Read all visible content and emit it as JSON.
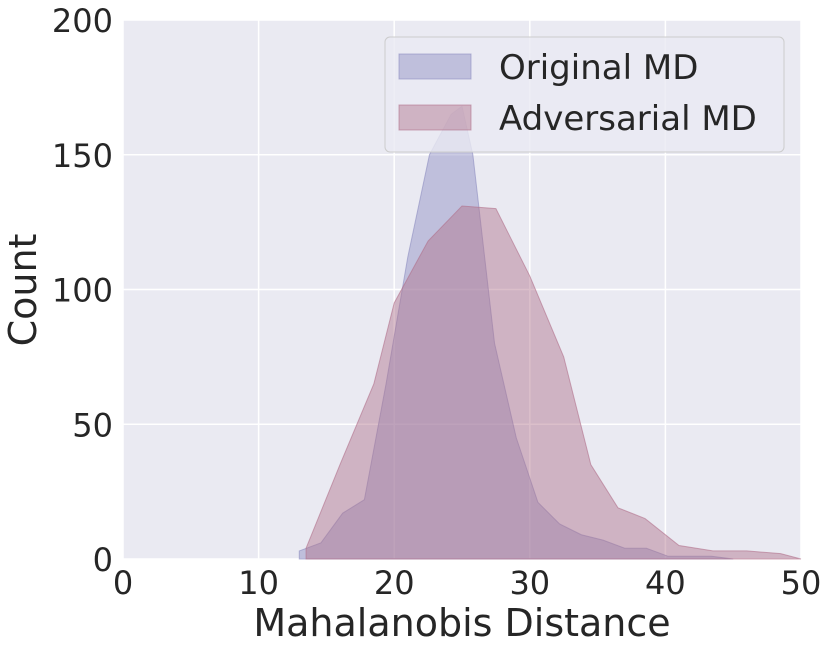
{
  "chart_data": {
    "type": "area",
    "title": "",
    "xlabel": "Mahalanobis Distance",
    "ylabel": "Count",
    "xlim": [
      0,
      50
    ],
    "ylim": [
      0,
      200
    ],
    "xticks": [
      "0",
      "10",
      "20",
      "30",
      "40",
      "50"
    ],
    "yticks": [
      "0",
      "50",
      "100",
      "150",
      "200"
    ],
    "grid": true,
    "legend_position": "top-right",
    "series": [
      {
        "name": "Original MD",
        "color": "#8c8cc0",
        "x": [
          13.0,
          14.6,
          16.2,
          17.8,
          19.4,
          21.0,
          22.6,
          24.2,
          25.0,
          25.8,
          27.4,
          29.0,
          30.6,
          32.2,
          33.8,
          35.4,
          37.0,
          38.6,
          40.2,
          41.8,
          43.4,
          45.0
        ],
        "y": [
          3,
          6,
          17,
          22,
          65,
          112,
          150,
          165,
          168,
          150,
          80,
          45,
          21,
          13,
          9,
          7,
          4,
          4,
          1,
          1,
          1,
          0
        ]
      },
      {
        "name": "Adversarial MD",
        "color": "#b0708a",
        "x": [
          13.5,
          16.0,
          18.5,
          20.0,
          22.5,
          25.0,
          27.5,
          30.0,
          32.5,
          34.5,
          36.5,
          38.5,
          41.0,
          43.5,
          46.0,
          48.5,
          50.0
        ],
        "y": [
          4,
          35,
          65,
          95,
          118,
          131,
          130,
          105,
          75,
          35,
          19,
          15,
          5,
          3,
          3,
          2,
          0
        ]
      }
    ]
  }
}
